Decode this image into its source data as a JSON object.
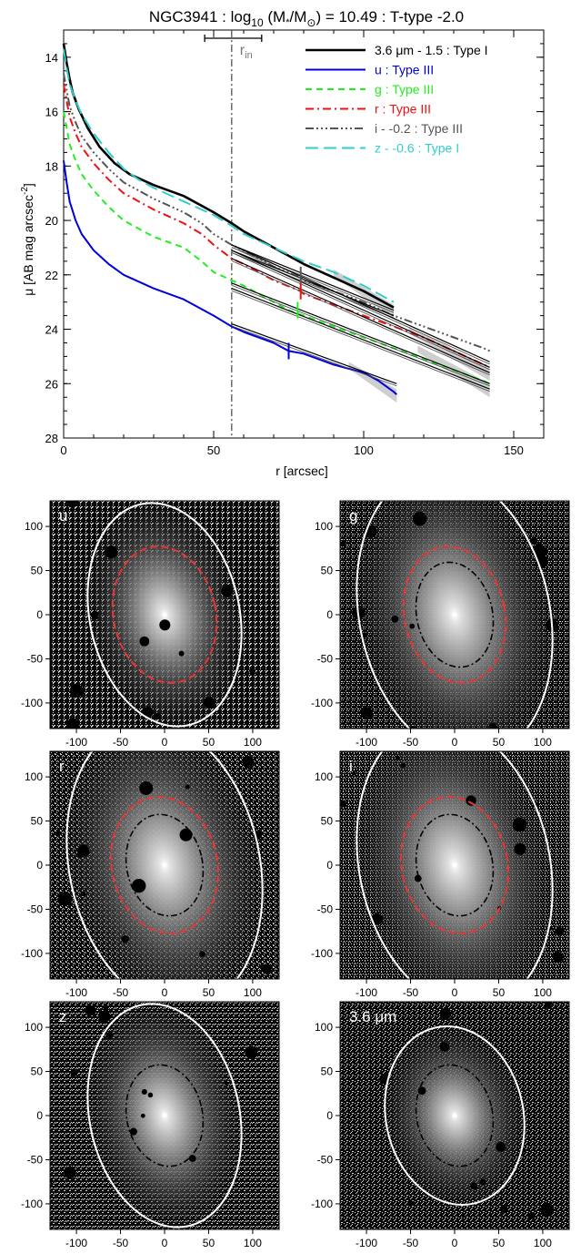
{
  "chart_data": [
    {
      "type": "line",
      "title": "NGC3941 : log10 (M*/M⊙) = 10.49 : T-type -2.0",
      "title_parts": {
        "a": "NGC3941 : log",
        "sub": "10",
        "b": " (M",
        "star": "*",
        "c": "/M",
        "d": ") = 10.49 : T-type -2.0"
      },
      "xlabel": "r [arcsec]",
      "ylabel": "μ [AB mag arcsec⁻²]",
      "ylabel_parts": {
        "main": "μ [AB mag arcsec",
        "sup": "-2",
        "end": "]"
      },
      "xlim": [
        0,
        160
      ],
      "ylim": [
        28,
        13
      ],
      "xticks": [
        0,
        50,
        100,
        150
      ],
      "yticks": [
        14,
        16,
        18,
        20,
        22,
        24,
        26,
        28
      ],
      "r_in": {
        "label": "r",
        "sub": "in",
        "value": 56,
        "range": [
          47,
          66
        ]
      },
      "legend_position": "top-right",
      "series": [
        {
          "name": "3.6 μm - 1.5 : Type I",
          "color": "#000000",
          "dash": "",
          "width": 2.6,
          "label_color": "#000000",
          "x": [
            0,
            1,
            2,
            3,
            5,
            8,
            12,
            17,
            22,
            30,
            40,
            50,
            56,
            60,
            70,
            80,
            90,
            100,
            105,
            110
          ],
          "y": [
            13.5,
            14.2,
            14.8,
            15.3,
            15.9,
            16.6,
            17.3,
            17.9,
            18.3,
            18.7,
            19.1,
            19.7,
            20.1,
            20.4,
            21.0,
            21.6,
            22.1,
            22.6,
            22.9,
            23.2
          ]
        },
        {
          "name": "u : Type III",
          "color": "#0000dd",
          "dash": "",
          "width": 2,
          "label_color": "#0000dd",
          "x": [
            0,
            1,
            2,
            4,
            6,
            10,
            15,
            20,
            30,
            40,
            50,
            56,
            60,
            70,
            75,
            80,
            90,
            100,
            105,
            110,
            111
          ],
          "y": [
            17.8,
            18.6,
            19.3,
            20.0,
            20.5,
            21.1,
            21.6,
            22.0,
            22.5,
            22.9,
            23.5,
            23.9,
            24.1,
            24.5,
            24.8,
            24.9,
            25.3,
            25.6,
            25.9,
            26.3,
            26.4
          ]
        },
        {
          "name": "g : Type III",
          "color": "#22ee22",
          "dash": "7,5",
          "width": 2,
          "label_color": "#22ee22",
          "x": [
            0,
            1,
            2,
            4,
            6,
            10,
            15,
            20,
            30,
            40,
            46,
            50,
            56,
            60,
            70,
            75,
            80,
            90,
            100,
            110,
            120,
            130,
            140,
            142
          ],
          "y": [
            16.0,
            16.6,
            17.2,
            17.8,
            18.3,
            18.9,
            19.5,
            20.0,
            20.6,
            21.0,
            21.5,
            21.9,
            22.2,
            22.4,
            23.0,
            23.3,
            23.5,
            23.9,
            24.3,
            24.7,
            25.1,
            25.5,
            25.9,
            26.0
          ]
        },
        {
          "name": "r : Type III",
          "color": "#ee1111",
          "dash": "9,4,2,4",
          "width": 2,
          "label_color": "#ee1111",
          "x": [
            0,
            1,
            2,
            4,
            6,
            10,
            15,
            20,
            30,
            40,
            46,
            50,
            56,
            60,
            70,
            79,
            80,
            90,
            100,
            110,
            120,
            130,
            140,
            142
          ],
          "y": [
            15.0,
            15.6,
            16.2,
            16.8,
            17.3,
            17.9,
            18.5,
            19.0,
            19.6,
            20.1,
            20.5,
            20.9,
            21.4,
            21.6,
            22.2,
            22.6,
            22.7,
            23.1,
            23.5,
            23.9,
            24.3,
            24.8,
            25.3,
            25.4
          ]
        },
        {
          "name": "i - -0.2 : Type III",
          "color": "#555555",
          "dash": "9,3,2,3,2,3,2,3",
          "width": 2,
          "label_color": "#555555",
          "x": [
            0,
            1,
            2,
            4,
            6,
            10,
            15,
            20,
            30,
            40,
            46,
            50,
            56,
            60,
            70,
            79,
            80,
            90,
            100,
            110,
            120,
            130,
            140,
            142
          ],
          "y": [
            14.6,
            15.2,
            15.8,
            16.4,
            16.9,
            17.5,
            18.1,
            18.6,
            19.2,
            19.7,
            20.1,
            20.5,
            20.9,
            21.1,
            21.7,
            22.1,
            22.2,
            22.6,
            23.0,
            23.5,
            23.9,
            24.3,
            24.7,
            24.8
          ]
        },
        {
          "name": "z - -0.6 : Type I",
          "color": "#33cccc",
          "dash": "14,6",
          "width": 2,
          "label_color": "#33cccc",
          "x": [
            0,
            1,
            2,
            4,
            6,
            10,
            15,
            20,
            25,
            30,
            40,
            50,
            56,
            60,
            70,
            80,
            90,
            100,
            105,
            110
          ],
          "y": [
            13.7,
            14.4,
            15.0,
            15.6,
            16.1,
            16.8,
            17.5,
            18.1,
            18.5,
            18.8,
            19.3,
            19.8,
            20.2,
            20.5,
            21.0,
            21.5,
            21.9,
            22.4,
            22.7,
            23.0
          ]
        }
      ],
      "fits": [
        {
          "x": [
            56,
            110
          ],
          "y": [
            20.9,
            23.3
          ]
        },
        {
          "x": [
            56,
            110
          ],
          "y": [
            21.1,
            23.5
          ]
        },
        {
          "x": [
            56,
            142
          ],
          "y": [
            20.9,
            25.2
          ]
        },
        {
          "x": [
            56,
            142
          ],
          "y": [
            21.1,
            25.4
          ]
        },
        {
          "x": [
            56,
            142
          ],
          "y": [
            21.4,
            25.6
          ]
        },
        {
          "x": [
            56,
            142
          ],
          "y": [
            22.3,
            26.0
          ]
        },
        {
          "x": [
            56,
            142
          ],
          "y": [
            22.5,
            26.2
          ]
        },
        {
          "x": [
            56,
            111
          ],
          "y": [
            23.8,
            26.0
          ]
        }
      ],
      "break_ticks": [
        {
          "x": 75,
          "y": 24.8,
          "color": "#0000dd"
        },
        {
          "x": 78,
          "y": 23.3,
          "color": "#22ee22"
        },
        {
          "x": 79,
          "y": 22.6,
          "color": "#ee1111"
        },
        {
          "x": 79,
          "y": 22.0,
          "color": "#555555"
        }
      ]
    },
    {
      "type": "image",
      "panels": [
        {
          "label": "u",
          "xticks": [
            "-100",
            "-50",
            "0",
            "50",
            "100"
          ],
          "yticks": [
            "100",
            "50",
            "0",
            "-50",
            "-100"
          ],
          "outer": [
            85,
            128
          ],
          "red": [
            58,
            78
          ],
          "inner": null
        },
        {
          "label": "g",
          "xticks": [
            "-100",
            "-50",
            "0",
            "50",
            "100"
          ],
          "yticks": [
            "100",
            "50",
            "0",
            "-50",
            "-100"
          ],
          "outer": [
            108,
            165
          ],
          "red": [
            57,
            78
          ],
          "inner": [
            43,
            60
          ]
        },
        {
          "label": "r",
          "xticks": [
            "-100",
            "-50",
            "0",
            "50",
            "100"
          ],
          "yticks": [
            "100",
            "50",
            "0",
            "-50",
            "-100"
          ],
          "outer": [
            108,
            165
          ],
          "red": [
            60,
            78
          ],
          "inner": [
            43,
            58
          ]
        },
        {
          "label": "i",
          "xticks": [
            "-100",
            "-50",
            "0",
            "50",
            "100"
          ],
          "yticks": [
            "100",
            "50",
            "0",
            "-50",
            "-100"
          ],
          "outer": [
            108,
            165
          ],
          "red": [
            60,
            78
          ],
          "inner": [
            43,
            58
          ]
        },
        {
          "label": "z",
          "xticks": [
            "-100",
            "-50",
            "0",
            "50",
            "100"
          ],
          "yticks": [
            "100",
            "50",
            "0",
            "-50",
            "-100"
          ],
          "outer": [
            85,
            128
          ],
          "red": null,
          "inner": [
            43,
            58
          ]
        },
        {
          "label": "3.6 μm",
          "xticks": [
            "-100",
            "-50",
            "0",
            "50",
            "100"
          ],
          "yticks": [
            "100",
            "50",
            "0",
            "-50",
            "-100"
          ],
          "outer": [
            78,
            102
          ],
          "red": null,
          "inner": [
            43,
            58
          ]
        }
      ]
    }
  ]
}
